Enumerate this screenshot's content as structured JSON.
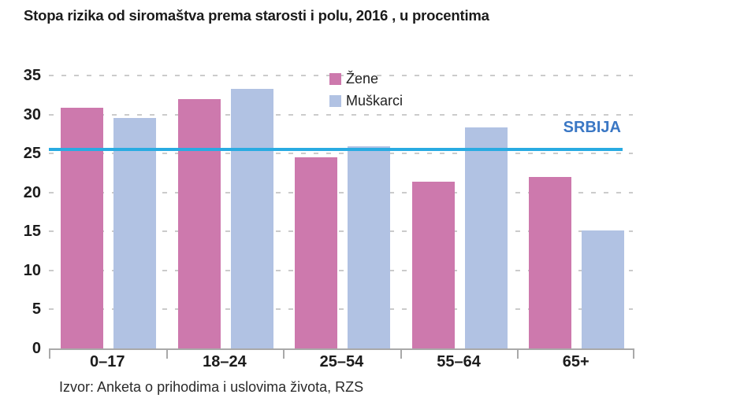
{
  "title": "Stopa rizika od siromaštva prema starosti i polu, 2016 , u procentima",
  "source": "Izvor: Anketa o prihodima i uslovima života, RZS",
  "legend": {
    "items": [
      {
        "label": "Žene",
        "color": "#cd79ad"
      },
      {
        "label": "Muškarci",
        "color": "#b1c2e3"
      }
    ]
  },
  "reference_line": {
    "label": "SRBIJA",
    "value": 25.5,
    "line_color": "#29abe2",
    "label_color": "#3a77c4"
  },
  "colors": {
    "grid": "#cbcbcb",
    "axis": "#a9a9a9",
    "text": "#1c1c1c"
  },
  "chart_data": {
    "type": "bar",
    "title": "Stopa rizika od siromaštva prema starosti i polu, 2016 , u procentima",
    "categories": [
      "0–17",
      "18–24",
      "25–54",
      "55–64",
      "65+"
    ],
    "series": [
      {
        "name": "Žene",
        "color": "#cd79ad",
        "values": [
          30.9,
          32.0,
          24.5,
          21.4,
          22.0
        ]
      },
      {
        "name": "Muškarci",
        "color": "#b1c2e3",
        "values": [
          29.6,
          33.3,
          25.9,
          28.3,
          15.1
        ]
      }
    ],
    "xlabel": "",
    "ylabel": "",
    "ylim": [
      0,
      35
    ],
    "yticks": [
      0,
      5,
      10,
      15,
      20,
      25,
      30,
      35
    ],
    "grid": "horizontal-dashed",
    "legend_position": "top-inside",
    "reference_line": {
      "label": "SRBIJA",
      "value": 25.5
    }
  }
}
